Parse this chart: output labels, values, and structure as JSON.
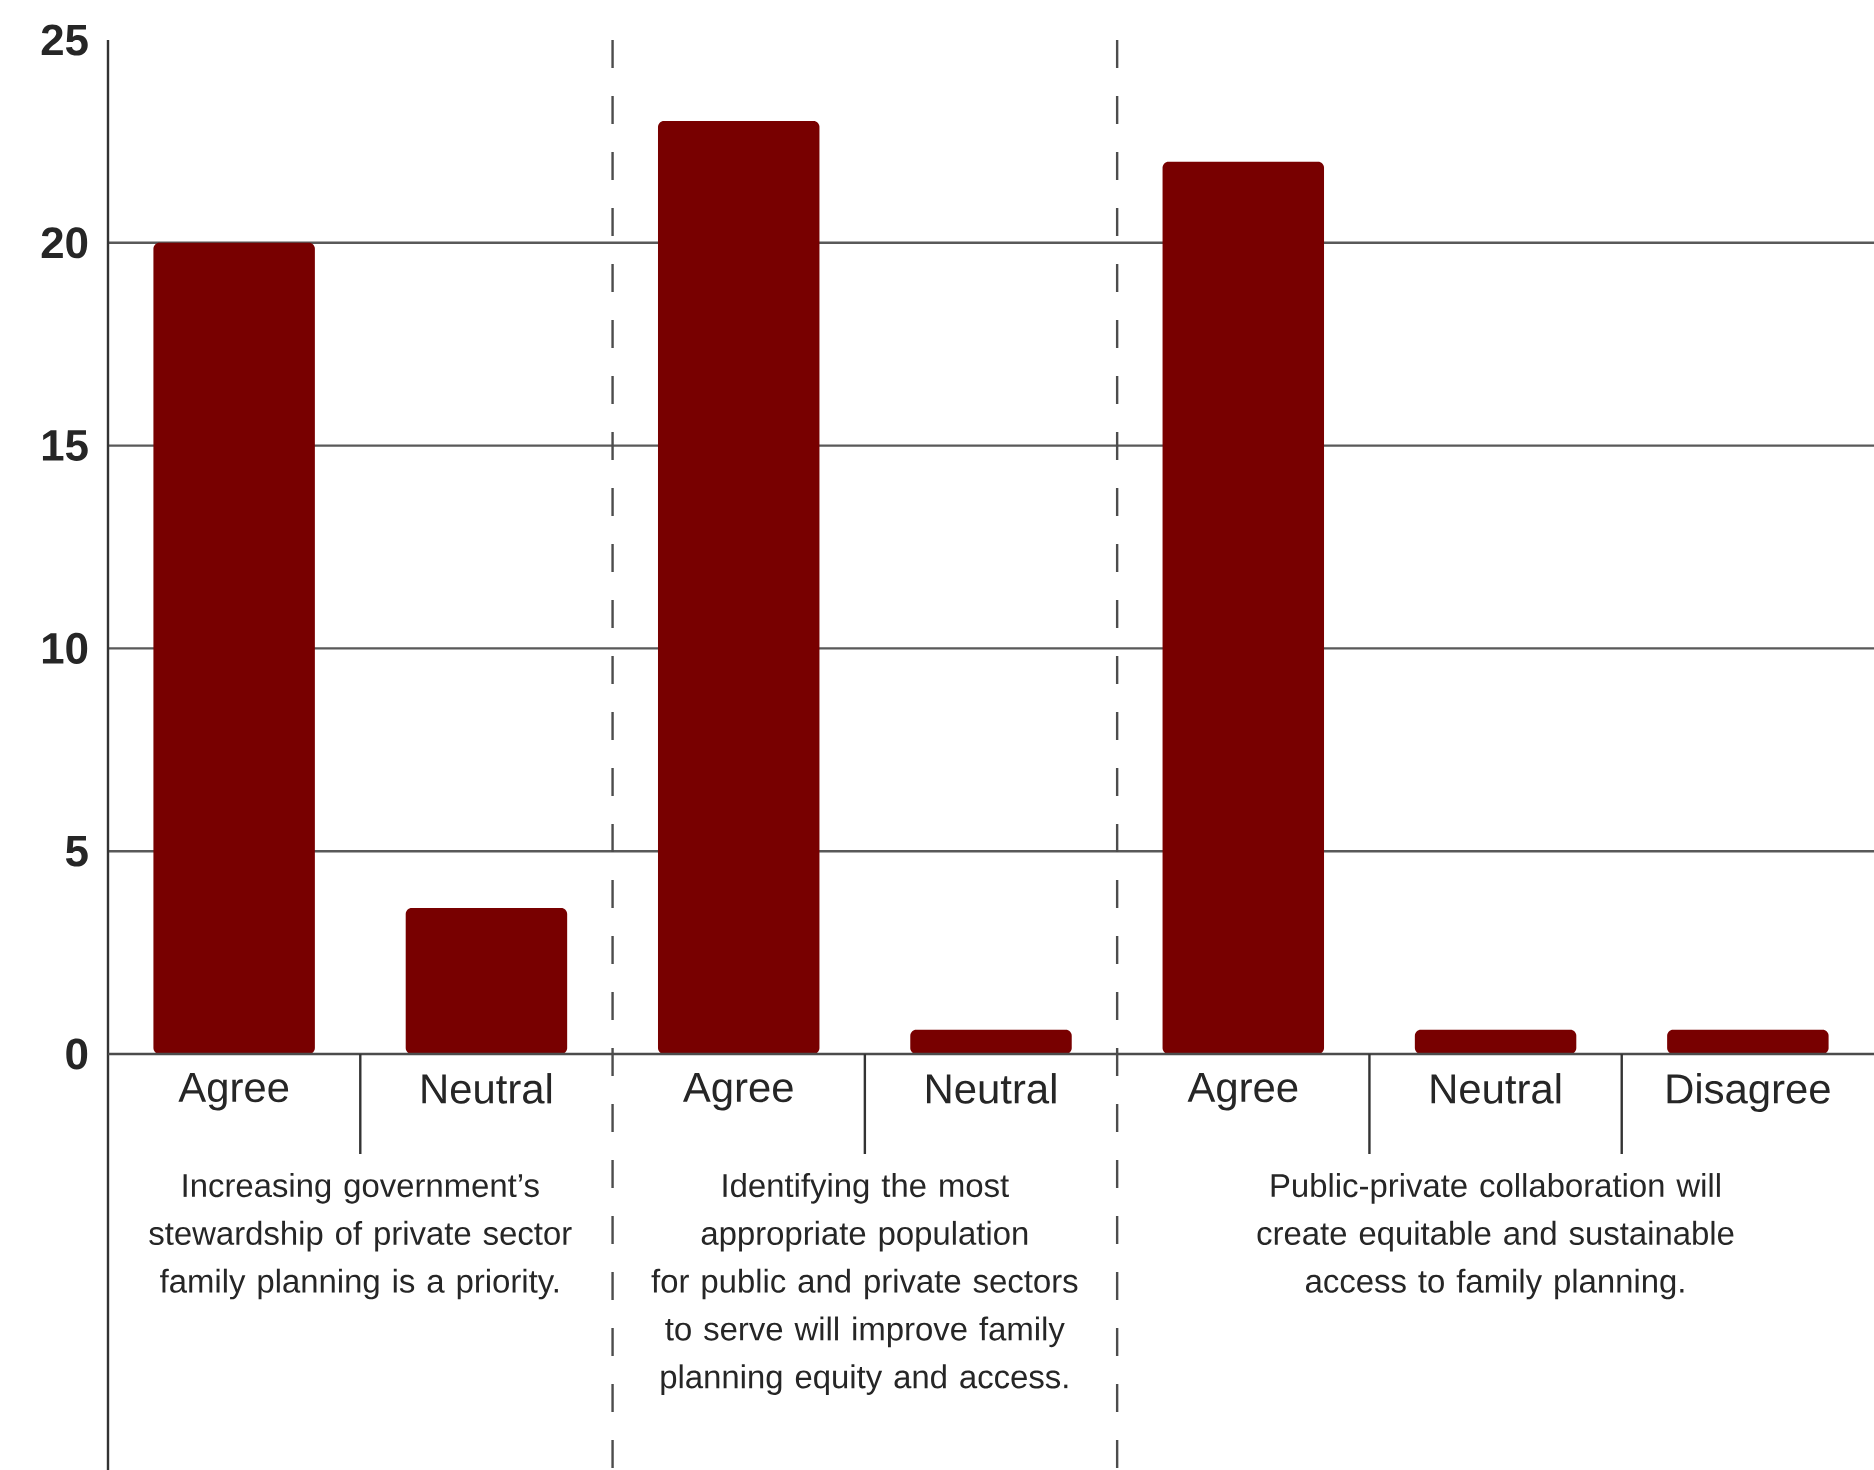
{
  "chart_data": {
    "type": "bar",
    "categories": [
      "Agree",
      "Neutral",
      "Agree",
      "Neutral",
      "Agree",
      "Neutral",
      "Disagree"
    ],
    "values": [
      20,
      3.6,
      23,
      0.6,
      22,
      0.6,
      0.6
    ],
    "color": "#780000",
    "ylim": [
      0,
      25
    ],
    "yticks": [
      0,
      5,
      10,
      15,
      20,
      25
    ],
    "grid": "y",
    "annotations": [
      "Increasing government’s stewardship of private sector family planning is a priority.",
      "Identifying the most appropriate population for public and private sectors to serve will improve family planning equity and access.",
      "Public-private collaboration will create equitable and sustainable access to family planning."
    ]
  }
}
